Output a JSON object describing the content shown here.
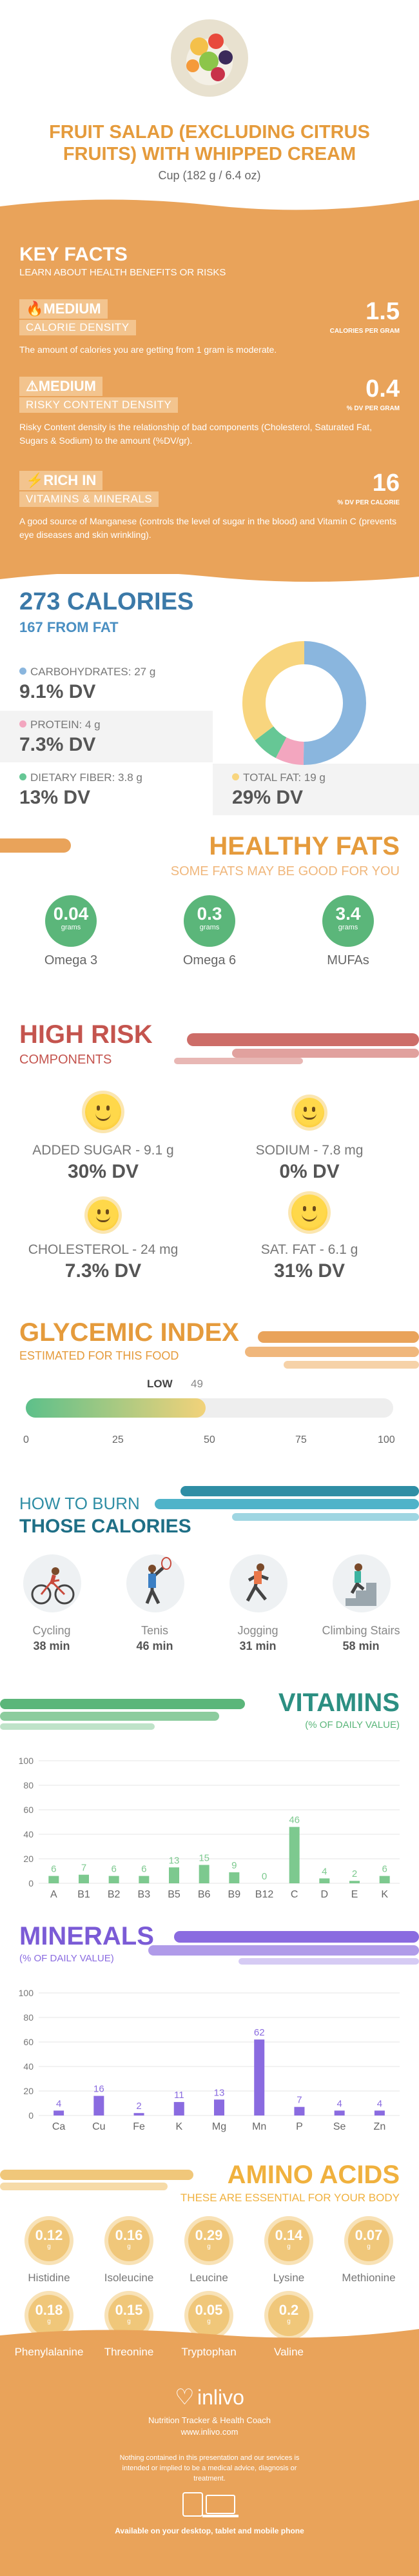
{
  "header": {
    "title": "FRUIT SALAD (EXCLUDING CITRUS FRUITS) WITH WHIPPED CREAM",
    "serving": "Cup (182 g / 6.4 oz)"
  },
  "key_facts": {
    "title": "KEY FACTS",
    "subtitle": "LEARN ABOUT HEALTH BENEFITS OR RISKS",
    "items": [
      {
        "tag": "MEDIUM",
        "label": "CALORIE DENSITY",
        "value": "1.5",
        "unit": "CALORIES PER GRAM",
        "desc": "The amount of calories you are getting from 1 gram is moderate."
      },
      {
        "tag": "MEDIUM",
        "label": "RISKY CONTENT DENSITY",
        "value": "0.4",
        "unit": "% DV PER GRAM",
        "desc": "Risky Content density is the relationship of bad components (Cholesterol, Saturated Fat, Sugars & Sodium) to the amount (%DV/gr)."
      },
      {
        "tag": "RICH IN",
        "label": "VITAMINS & MINERALS",
        "value": "16",
        "unit": "% DV PER CALORIE",
        "desc": "A good source of Manganese (controls the level of sugar in the blood) and Vitamin C (prevents eye diseases and skin wrinkling)."
      }
    ]
  },
  "calories": {
    "title": "273 CALORIES",
    "from_fat": "167 FROM FAT",
    "carbs": {
      "label": "CARBOHYDRATES: 27 g",
      "dv": "9.1% DV"
    },
    "protein": {
      "label": "PROTEIN: 4 g",
      "dv": "7.3% DV"
    },
    "fiber": {
      "label": "DIETARY FIBER: 3.8 g",
      "dv": "13% DV"
    },
    "fat": {
      "label": "TOTAL FAT: 19 g",
      "dv": "29% DV"
    },
    "colors": {
      "carbs": "#8ab6de",
      "protein": "#f3a6bf",
      "fiber": "#66c795",
      "fat": "#f8d57e"
    },
    "donut": [
      {
        "name": "carbs",
        "value": 27
      },
      {
        "name": "protein",
        "value": 4
      },
      {
        "name": "fiber",
        "value": 3.8
      },
      {
        "name": "fat",
        "value": 19
      }
    ]
  },
  "healthy_fats": {
    "title": "HEALTHY FATS",
    "subtitle": "SOME FATS MAY BE GOOD FOR YOU",
    "items": [
      {
        "value": "0.04",
        "unit": "grams",
        "name": "Omega 3"
      },
      {
        "value": "0.3",
        "unit": "grams",
        "name": "Omega 6"
      },
      {
        "value": "3.4",
        "unit": "grams",
        "name": "MUFAs"
      }
    ]
  },
  "high_risk": {
    "title": "HIGH RISK",
    "subtitle": "COMPONENTS",
    "items": [
      {
        "label": "ADDED SUGAR - 9.1 g",
        "dv": "30% DV"
      },
      {
        "label": "SODIUM - 7.8 mg",
        "dv": "0% DV"
      },
      {
        "label": "CHOLESTEROL - 24 mg",
        "dv": "7.3% DV"
      },
      {
        "label": "SAT. FAT - 6.1 g",
        "dv": "31% DV"
      }
    ]
  },
  "glycemic": {
    "title": "GLYCEMIC INDEX",
    "subtitle": "ESTIMATED FOR THIS FOOD",
    "level": "LOW",
    "value": "49",
    "value_num": 49,
    "ticks": [
      "0",
      "25",
      "50",
      "75",
      "100"
    ]
  },
  "burn": {
    "title_top": "HOW TO BURN",
    "title_bottom": "THOSE CALORIES",
    "items": [
      {
        "name": "Cycling",
        "min": "38 min",
        "icon": "cycling-icon"
      },
      {
        "name": "Tenis",
        "min": "46 min",
        "icon": "tennis-icon"
      },
      {
        "name": "Jogging",
        "min": "31 min",
        "icon": "jogging-icon"
      },
      {
        "name": "Climbing Stairs",
        "min": "58 min",
        "icon": "stairs-icon"
      }
    ]
  },
  "chart_data": [
    {
      "type": "bar",
      "title": "VITAMINS",
      "ylabel": "(% OF DAILY VALUE)",
      "categories": [
        "A",
        "B1",
        "B2",
        "B3",
        "B5",
        "B6",
        "B9",
        "B12",
        "C",
        "D",
        "E",
        "K"
      ],
      "values": [
        6,
        7,
        6,
        6,
        13,
        15,
        9,
        0,
        46,
        4,
        2,
        6
      ],
      "ylim": [
        0,
        100
      ],
      "yticks": [
        "0",
        "20",
        "40",
        "60",
        "80",
        "100"
      ],
      "color": "#7dc98f"
    },
    {
      "type": "bar",
      "title": "MINERALS",
      "ylabel": "(% OF DAILY VALUE)",
      "categories": [
        "Ca",
        "Cu",
        "Fe",
        "K",
        "Mg",
        "Mn",
        "P",
        "Se",
        "Zn"
      ],
      "values": [
        4,
        16,
        2,
        11,
        13,
        62,
        7,
        4,
        4
      ],
      "ylim": [
        0,
        100
      ],
      "yticks": [
        "0",
        "20",
        "40",
        "60",
        "80",
        "100"
      ],
      "color": "#8a6be0"
    }
  ],
  "amino": {
    "title": "AMINO ACIDS",
    "subtitle": "THESE ARE ESSENTIAL FOR YOUR BODY",
    "items": [
      {
        "value": "0.12",
        "unit": "g",
        "name": "Histidine"
      },
      {
        "value": "0.16",
        "unit": "g",
        "name": "Isoleucine"
      },
      {
        "value": "0.29",
        "unit": "g",
        "name": "Leucine"
      },
      {
        "value": "0.14",
        "unit": "g",
        "name": "Lysine"
      },
      {
        "value": "0.07",
        "unit": "g",
        "name": "Methionine"
      },
      {
        "value": "0.18",
        "unit": "g",
        "name": "Phenylalanine"
      },
      {
        "value": "0.15",
        "unit": "g",
        "name": "Threonine"
      },
      {
        "value": "0.05",
        "unit": "g",
        "name": "Tryptophan"
      },
      {
        "value": "0.2",
        "unit": "g",
        "name": "Valine"
      }
    ]
  },
  "footer": {
    "brand": "inlivo",
    "tagline": "Nutrition Tracker & Health Coach",
    "url": "www.inlivo.com",
    "disclaimer": "Nothing contained in this presentation and our services is intended or implied to be a medical advice, diagnosis or treatment.",
    "available": "Available on your desktop, tablet and mobile phone"
  }
}
